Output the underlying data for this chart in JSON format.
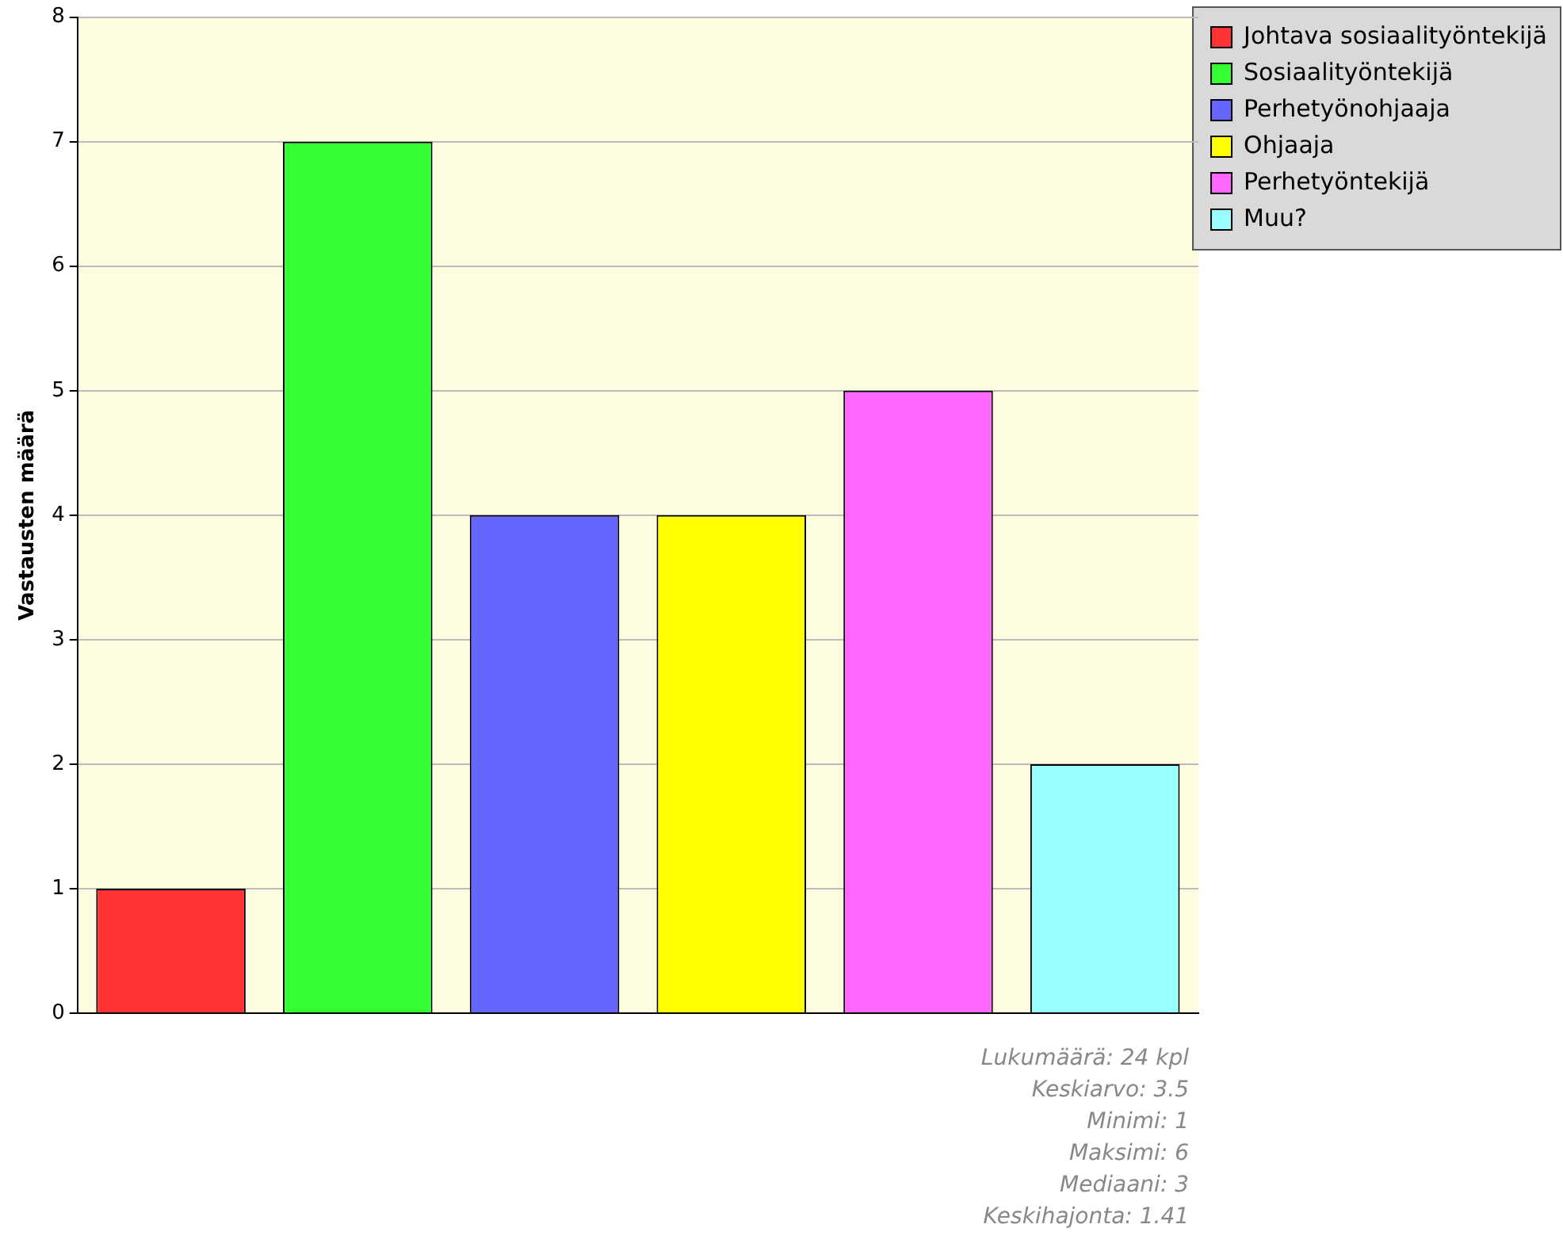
{
  "chart_data": {
    "type": "bar",
    "ylabel": "Vastausten määrä",
    "categories": [
      null,
      null,
      null,
      null,
      null,
      null
    ],
    "series": [
      {
        "name": "Johtava sosiaalityöntekijä",
        "color": "#ff3333",
        "values": [
          1,
          null,
          null,
          null,
          null,
          null
        ]
      },
      {
        "name": "Sosiaalityöntekijä",
        "color": "#33ff33",
        "values": [
          null,
          7,
          null,
          null,
          null,
          null
        ]
      },
      {
        "name": "Perhetyönohjaaja",
        "color": "#6666ff",
        "values": [
          null,
          null,
          4,
          null,
          null,
          null
        ]
      },
      {
        "name": "Ohjaaja",
        "color": "#ffff00",
        "values": [
          null,
          null,
          null,
          4,
          null,
          null
        ]
      },
      {
        "name": "Perhetyöntekijä",
        "color": "#ff66ff",
        "values": [
          null,
          null,
          null,
          null,
          5,
          null
        ]
      },
      {
        "name": "Muu?",
        "color": "#99ffff",
        "values": [
          null,
          null,
          null,
          null,
          null,
          2
        ]
      }
    ],
    "ylim": [
      0,
      8
    ],
    "yticks": [
      0,
      1,
      2,
      3,
      4,
      5,
      6,
      7,
      8
    ],
    "grid": "y",
    "legend": "top right",
    "tick_labels": "y",
    "annotations": [
      "Lukumäärä: 24 kpl",
      "Keskiarvo: 3.5",
      "Minimi: 1",
      "Maksimi: 6",
      "Mediaani: 3",
      "Keskihajonta: 1.41"
    ]
  }
}
